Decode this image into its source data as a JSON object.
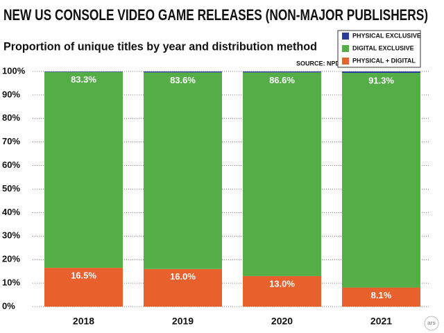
{
  "chart_data": {
    "type": "stacked_bar",
    "title": "NEW US CONSOLE VIDEO GAME RELEASES (NON-MAJOR PUBLISHERS)",
    "subtitle": "Proportion of unique titles by year and distribution method",
    "source": "SOURCE: NPD",
    "logo": "ars",
    "categories": [
      "2018",
      "2019",
      "2020",
      "2021"
    ],
    "series": [
      {
        "name": "PHYSICAL + DIGITAL",
        "color": "#e8602c",
        "values": [
          16.5,
          16.0,
          13.0,
          8.1
        ],
        "value_labels": [
          "16.5%",
          "16.0%",
          "13.0%",
          "8.1%"
        ]
      },
      {
        "name": "DIGITAL EXCLUSIVE",
        "color": "#55ad47",
        "values": [
          83.3,
          83.6,
          86.6,
          91.3
        ],
        "value_labels": [
          "83.3%",
          "83.6%",
          "86.6%",
          "91.3%"
        ]
      },
      {
        "name": "PHYSICAL EXCLUSIVE",
        "color": "#2b3a9e",
        "values": [
          0.2,
          0.4,
          0.4,
          0.6
        ]
      }
    ],
    "ylim": [
      0,
      100
    ],
    "yticks": [
      {
        "value": 0,
        "label": "0%"
      },
      {
        "value": 10,
        "label": "10%"
      },
      {
        "value": 20,
        "label": "20%"
      },
      {
        "value": 30,
        "label": "30%"
      },
      {
        "value": 40,
        "label": "40%"
      },
      {
        "value": 50,
        "label": "50%"
      },
      {
        "value": 60,
        "label": "60%"
      },
      {
        "value": 70,
        "label": "70%"
      },
      {
        "value": 80,
        "label": "80%"
      },
      {
        "value": 90,
        "label": "90%"
      },
      {
        "value": 100,
        "label": "100%"
      }
    ],
    "grid": true,
    "legend": "top-right"
  }
}
